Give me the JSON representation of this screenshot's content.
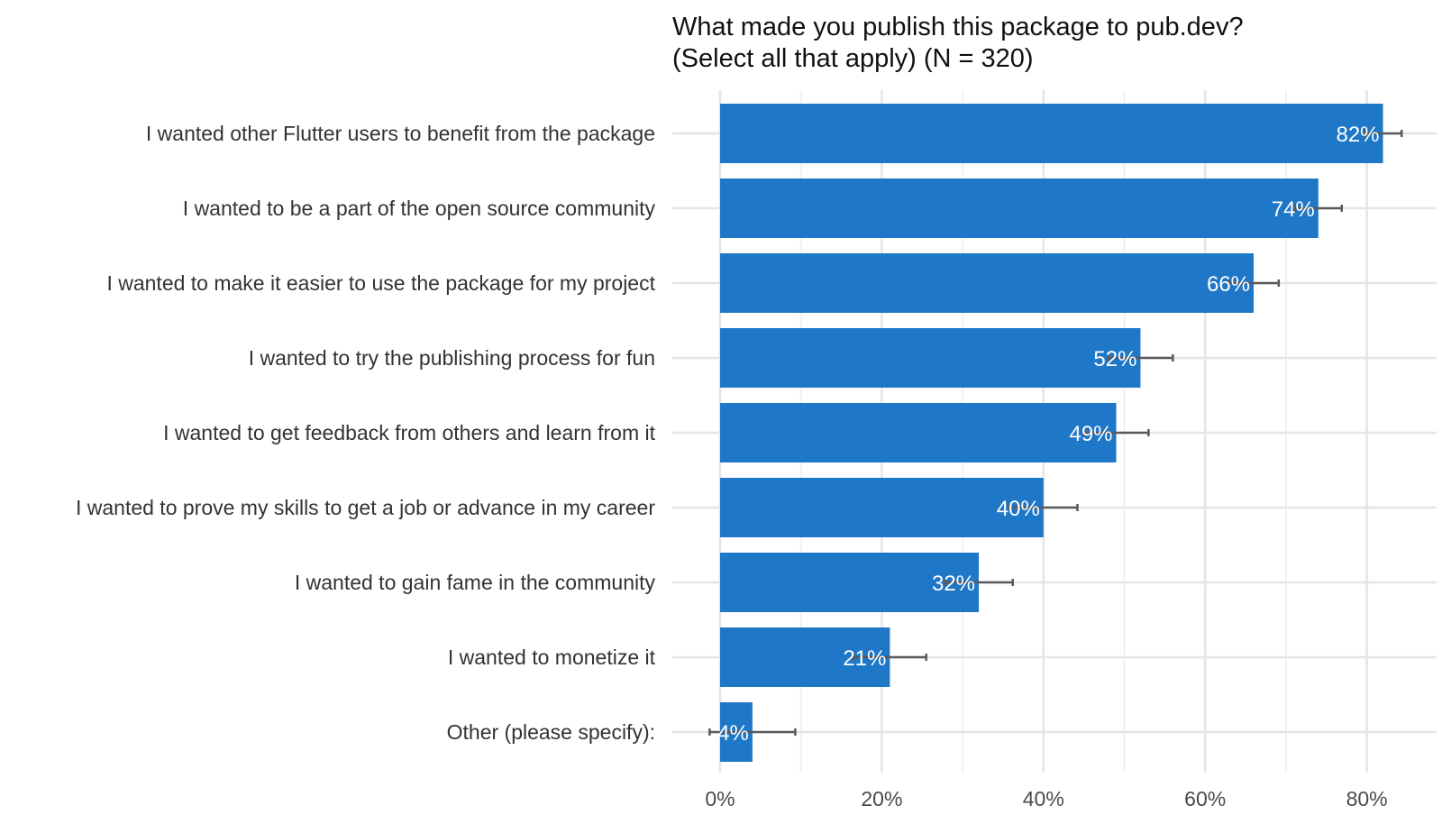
{
  "chart_data": {
    "type": "bar",
    "orientation": "horizontal",
    "title": "What made you publish this package to pub.dev?",
    "subtitle": "(Select all that apply) (N = 320)",
    "categories": [
      "I wanted other Flutter users to benefit from the package",
      "I wanted to be a part of the open source community",
      "I wanted to make it easier to use the package for my project",
      "I wanted to try the publishing process for fun",
      "I wanted to get feedback from others and learn from it",
      "I wanted to prove my skills to get a job or advance in my career",
      "I wanted to gain fame in the community",
      "I wanted to monetize it",
      "Other (please specify):"
    ],
    "values": [
      82,
      74,
      66,
      52,
      49,
      40,
      32,
      21,
      4
    ],
    "error_upper": [
      84.3,
      76.9,
      69.1,
      56.0,
      53.0,
      44.2,
      36.2,
      25.5,
      9.3
    ],
    "error_lower": [
      79.7,
      71.1,
      62.9,
      48.0,
      45.0,
      35.8,
      27.8,
      16.5,
      -1.3
    ],
    "labels": [
      "82%",
      "74%",
      "66%",
      "52%",
      "49%",
      "40%",
      "32%",
      "21%",
      "4%"
    ],
    "xlabel": "",
    "ylabel": "",
    "xlim": [
      0,
      88
    ],
    "x_ticks": [
      0,
      20,
      40,
      60,
      80
    ],
    "x_tick_labels": [
      "0%",
      "20%",
      "40%",
      "60%",
      "80%"
    ],
    "grid": true,
    "colors": {
      "bar": "#1f77c8",
      "error_bar": "#595959",
      "grid_major": "#e5e5e5",
      "grid_minor": "#f1f1f1"
    }
  }
}
